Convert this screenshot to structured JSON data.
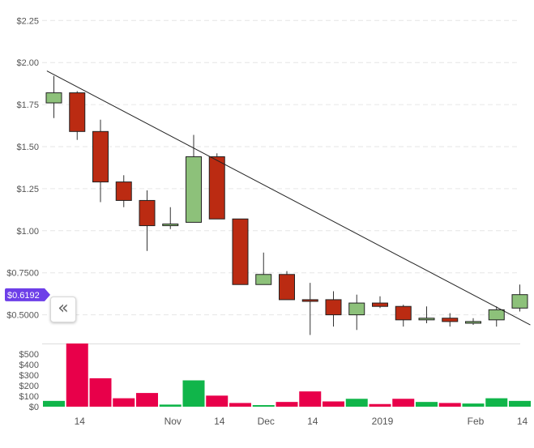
{
  "chart_data": [
    {
      "type": "candlestick",
      "price_ticks": [
        "$2.25",
        "$2.00",
        "$1.75",
        "$1.50",
        "$1.25",
        "$1.00",
        "$0.7500",
        "$0.5000"
      ],
      "price_tick_values": [
        2.25,
        2.0,
        1.75,
        1.5,
        1.25,
        1.0,
        0.75,
        0.5
      ],
      "ylim": [
        0.4,
        2.33
      ],
      "current_price_label": "$0.6192",
      "current_price": 0.6192,
      "grid": true,
      "up_color": "#8dc17a",
      "down_color": "#bb2b12",
      "candles": [
        {
          "open": 1.76,
          "close": 1.82,
          "high": 1.92,
          "low": 1.67
        },
        {
          "open": 1.82,
          "close": 1.59,
          "high": 1.83,
          "low": 1.54
        },
        {
          "open": 1.59,
          "close": 1.29,
          "high": 1.66,
          "low": 1.17
        },
        {
          "open": 1.29,
          "close": 1.18,
          "high": 1.33,
          "low": 1.14
        },
        {
          "open": 1.18,
          "close": 1.03,
          "high": 1.24,
          "low": 0.88
        },
        {
          "open": 1.03,
          "close": 1.04,
          "high": 1.14,
          "low": 1.01
        },
        {
          "open": 1.05,
          "close": 1.44,
          "high": 1.57,
          "low": 1.05
        },
        {
          "open": 1.44,
          "close": 1.07,
          "high": 1.46,
          "low": 1.07
        },
        {
          "open": 1.07,
          "close": 0.68,
          "high": 1.07,
          "low": 0.68
        },
        {
          "open": 0.68,
          "close": 0.74,
          "high": 0.87,
          "low": 0.68
        },
        {
          "open": 0.74,
          "close": 0.59,
          "high": 0.76,
          "low": 0.59
        },
        {
          "open": 0.59,
          "close": 0.58,
          "high": 0.69,
          "low": 0.38
        },
        {
          "open": 0.59,
          "close": 0.5,
          "high": 0.64,
          "low": 0.43
        },
        {
          "open": 0.5,
          "close": 0.57,
          "high": 0.62,
          "low": 0.41
        },
        {
          "open": 0.57,
          "close": 0.55,
          "high": 0.61,
          "low": 0.54
        },
        {
          "open": 0.55,
          "close": 0.47,
          "high": 0.56,
          "low": 0.43
        },
        {
          "open": 0.47,
          "close": 0.48,
          "high": 0.55,
          "low": 0.45
        },
        {
          "open": 0.48,
          "close": 0.46,
          "high": 0.51,
          "low": 0.43
        },
        {
          "open": 0.45,
          "close": 0.46,
          "high": 0.48,
          "low": 0.44
        },
        {
          "open": 0.47,
          "close": 0.53,
          "high": 0.55,
          "low": 0.43
        },
        {
          "open": 0.54,
          "close": 0.62,
          "high": 0.68,
          "low": 0.52
        }
      ],
      "trendline": {
        "from": {
          "candle": -0.3,
          "value": 1.95
        },
        "to": {
          "candle": 20.45,
          "value": 0.44
        }
      }
    },
    {
      "type": "bar",
      "volume_ticks": [
        "$500",
        "$400",
        "$300",
        "$200",
        "$100",
        "$0"
      ],
      "volume_tick_values": [
        500,
        400,
        300,
        200,
        100,
        0
      ],
      "ylim": [
        0,
        600
      ],
      "up_color": "#10b54a",
      "down_color": "#e8004a",
      "volumes": [
        {
          "value": 55,
          "dir": "up"
        },
        {
          "value": 600,
          "dir": "down"
        },
        {
          "value": 270,
          "dir": "down"
        },
        {
          "value": 80,
          "dir": "down"
        },
        {
          "value": 130,
          "dir": "down"
        },
        {
          "value": 20,
          "dir": "up"
        },
        {
          "value": 250,
          "dir": "up"
        },
        {
          "value": 105,
          "dir": "down"
        },
        {
          "value": 35,
          "dir": "down"
        },
        {
          "value": 15,
          "dir": "up"
        },
        {
          "value": 45,
          "dir": "down"
        },
        {
          "value": 145,
          "dir": "down"
        },
        {
          "value": 50,
          "dir": "down"
        },
        {
          "value": 75,
          "dir": "up"
        },
        {
          "value": 25,
          "dir": "down"
        },
        {
          "value": 75,
          "dir": "down"
        },
        {
          "value": 45,
          "dir": "up"
        },
        {
          "value": 35,
          "dir": "down"
        },
        {
          "value": 30,
          "dir": "up"
        },
        {
          "value": 80,
          "dir": "up"
        },
        {
          "value": 55,
          "dir": "up"
        }
      ]
    }
  ],
  "x_axis": {
    "labels": [
      "14",
      "Nov",
      "14",
      "Dec",
      "14",
      "2019",
      "Feb",
      "14"
    ],
    "label_candle_positions": [
      1,
      5,
      7,
      9,
      11,
      14,
      18,
      20
    ]
  },
  "scroll_button": {
    "glyph": "«"
  },
  "colors": {
    "trendline": "#222222",
    "price_badge": "#6d3fe8",
    "grid": "#e6e6e6"
  }
}
